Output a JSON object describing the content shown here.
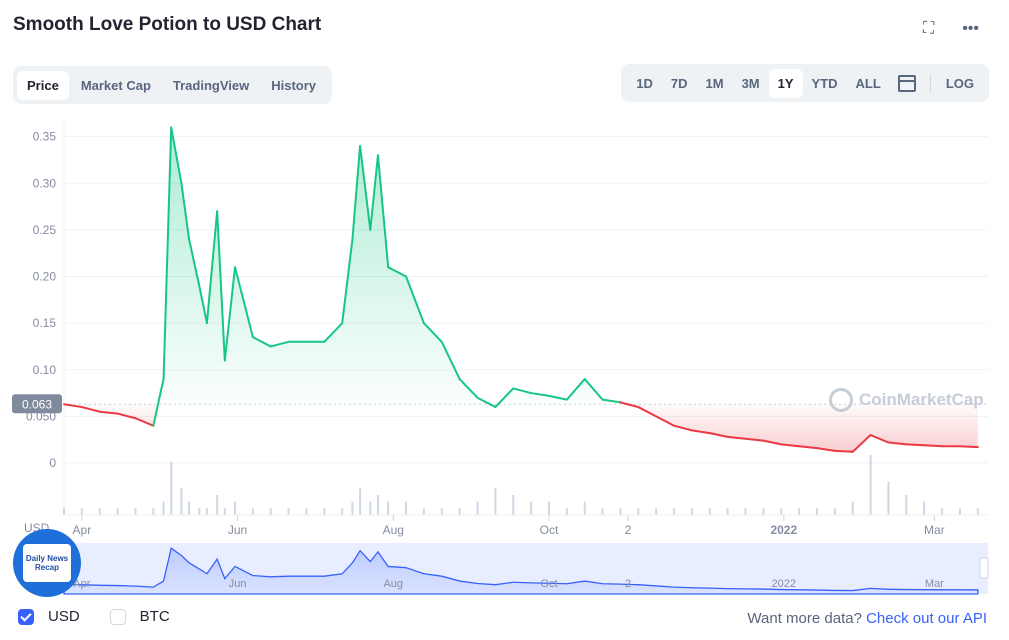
{
  "header": {
    "title": "Smooth Love Potion to USD Chart"
  },
  "tabs": [
    "Price",
    "Market Cap",
    "TradingView",
    "History"
  ],
  "ranges": [
    "1D",
    "7D",
    "1M",
    "3M",
    "1Y",
    "YTD",
    "ALL"
  ],
  "log_label": "LOG",
  "watermark": "CoinMarketCap",
  "badge_text": "Daily News Recap",
  "currency_label": "USD",
  "footer": {
    "usd": "USD",
    "btc": "BTC",
    "more": "Want more data?",
    "api": "Check out our API"
  },
  "colors": {
    "up": "#16c784",
    "down": "#ea3943",
    "accent": "#3861fb"
  },
  "chart_data": {
    "type": "line",
    "title": "Smooth Love Potion to USD Chart",
    "current_price": "0.063",
    "yticks": [
      "0.35",
      "0.30",
      "0.25",
      "0.20",
      "0.15",
      "0.10",
      "0.050",
      "0"
    ],
    "ylim": [
      0,
      0.37
    ],
    "xticks": [
      "Apr",
      "Jun",
      "Aug",
      "Oct",
      "2",
      "2022",
      "Mar"
    ],
    "navigator_ticks": [
      "Apr",
      "Jun",
      "Aug",
      "Oct",
      "2",
      "2022",
      "Mar"
    ],
    "x": [
      "2021-03-25",
      "2021-04-01",
      "2021-04-08",
      "2021-04-15",
      "2021-04-22",
      "2021-04-29",
      "2021-05-03",
      "2021-05-06",
      "2021-05-10",
      "2021-05-13",
      "2021-05-17",
      "2021-05-20",
      "2021-05-24",
      "2021-05-27",
      "2021-05-31",
      "2021-06-07",
      "2021-06-14",
      "2021-06-21",
      "2021-06-28",
      "2021-07-05",
      "2021-07-12",
      "2021-07-16",
      "2021-07-19",
      "2021-07-23",
      "2021-07-26",
      "2021-07-30",
      "2021-08-06",
      "2021-08-13",
      "2021-08-20",
      "2021-08-27",
      "2021-09-03",
      "2021-09-10",
      "2021-09-17",
      "2021-09-24",
      "2021-10-01",
      "2021-10-08",
      "2021-10-15",
      "2021-10-22",
      "2021-10-29",
      "2021-11-05",
      "2021-11-12",
      "2021-11-19",
      "2021-11-26",
      "2021-12-03",
      "2021-12-10",
      "2021-12-17",
      "2021-12-24",
      "2021-12-31",
      "2022-01-07",
      "2022-01-14",
      "2022-01-21",
      "2022-01-28",
      "2022-02-04",
      "2022-02-11",
      "2022-02-18",
      "2022-02-25",
      "2022-03-04",
      "2022-03-11",
      "2022-03-18"
    ],
    "y": [
      0.063,
      0.06,
      0.055,
      0.053,
      0.048,
      0.04,
      0.09,
      0.36,
      0.3,
      0.24,
      0.19,
      0.15,
      0.27,
      0.11,
      0.21,
      0.135,
      0.125,
      0.13,
      0.13,
      0.13,
      0.15,
      0.24,
      0.34,
      0.25,
      0.33,
      0.21,
      0.2,
      0.15,
      0.13,
      0.09,
      0.07,
      0.06,
      0.08,
      0.075,
      0.072,
      0.068,
      0.09,
      0.068,
      0.065,
      0.06,
      0.05,
      0.04,
      0.035,
      0.032,
      0.028,
      0.026,
      0.024,
      0.02,
      0.018,
      0.016,
      0.013,
      0.012,
      0.03,
      0.022,
      0.02,
      0.019,
      0.018,
      0.018,
      0.017
    ],
    "volume": [
      1,
      1,
      1,
      1,
      1,
      1,
      2,
      8,
      4,
      2,
      1,
      1,
      3,
      1,
      2,
      1,
      1,
      1,
      1,
      1,
      1,
      2,
      4,
      2,
      3,
      2,
      2,
      1,
      1,
      1,
      2,
      4,
      3,
      2,
      2,
      1,
      2,
      1,
      1,
      1,
      1,
      1,
      1,
      1,
      1,
      1,
      1,
      1,
      1,
      1,
      1,
      2,
      9,
      5,
      3,
      2,
      1,
      1,
      1
    ]
  }
}
